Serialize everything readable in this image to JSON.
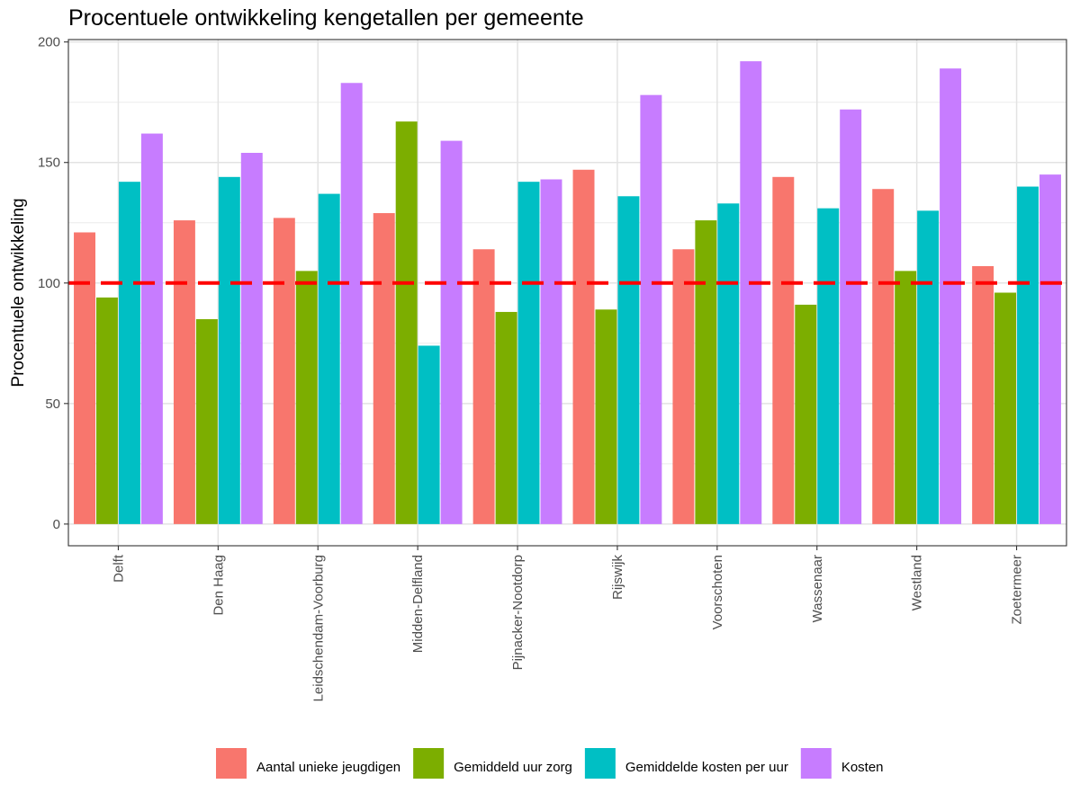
{
  "chart_data": {
    "type": "bar",
    "title": "Procentuele ontwikkeling kengetallen per gemeente",
    "ylabel": "Procentuele ontwikkeling",
    "xlabel": "",
    "ylim": [
      -9,
      201
    ],
    "yticks": [
      0,
      50,
      100,
      150,
      200
    ],
    "grid": true,
    "legend_position": "bottom",
    "reference_line": {
      "value": 100,
      "color": "#ff0000",
      "style": "dashed"
    },
    "categories": [
      "Delft",
      "Den Haag",
      "Leidschendam-Voorburg",
      "Midden-Delfland",
      "Pijnacker-Nootdorp",
      "Rijswijk",
      "Voorschoten",
      "Wassenaar",
      "Westland",
      "Zoetermeer"
    ],
    "series": [
      {
        "name": "Aantal unieke jeugdigen",
        "color": "#f8766d",
        "values": [
          121,
          126,
          127,
          129,
          114,
          147,
          114,
          144,
          139,
          107
        ]
      },
      {
        "name": "Gemiddeld uur zorg",
        "color": "#7cae00",
        "values": [
          94,
          85,
          105,
          167,
          88,
          89,
          126,
          91,
          105,
          96
        ]
      },
      {
        "name": "Gemiddelde kosten per uur",
        "color": "#00bfc4",
        "values": [
          142,
          144,
          137,
          74,
          142,
          136,
          133,
          131,
          130,
          140
        ]
      },
      {
        "name": "Kosten",
        "color": "#c77cff",
        "values": [
          162,
          154,
          183,
          159,
          143,
          178,
          192,
          172,
          189,
          145
        ]
      }
    ]
  }
}
